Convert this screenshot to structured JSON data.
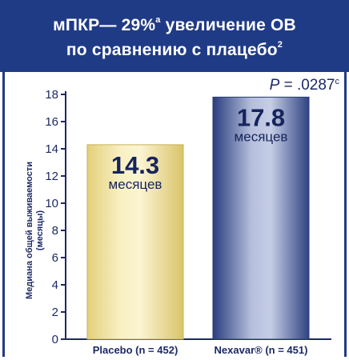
{
  "header": {
    "line1_main": "мПКР— 29%",
    "line1_sup": "a",
    "line1_rest": " увеличение ОВ",
    "line2_main": "по сравнению с плацебо",
    "line2_sup": "2"
  },
  "colors": {
    "header_bg": "#203b86",
    "placebo_bar": "#eadb94",
    "nexavar_bar": "#3a4f92",
    "text": "#1c2a66"
  },
  "chart_data": {
    "type": "bar",
    "categories": [
      "Placebo (n = 452)",
      "Nexavar® (n = 451)"
    ],
    "values": [
      14.3,
      17.8
    ],
    "value_labels": [
      "14.3",
      "17.8"
    ],
    "unit_label": "месяцев",
    "ylabel_line1": "Медиана общей выживаемости",
    "ylabel_line2": "(месяцы)",
    "ylim": [
      0,
      18
    ],
    "yticks": [
      0,
      2,
      4,
      6,
      8,
      10,
      12,
      14,
      16,
      18
    ],
    "annotation": {
      "p_symbol": "P",
      "p_value": " = .0287",
      "p_sup": "c"
    }
  }
}
